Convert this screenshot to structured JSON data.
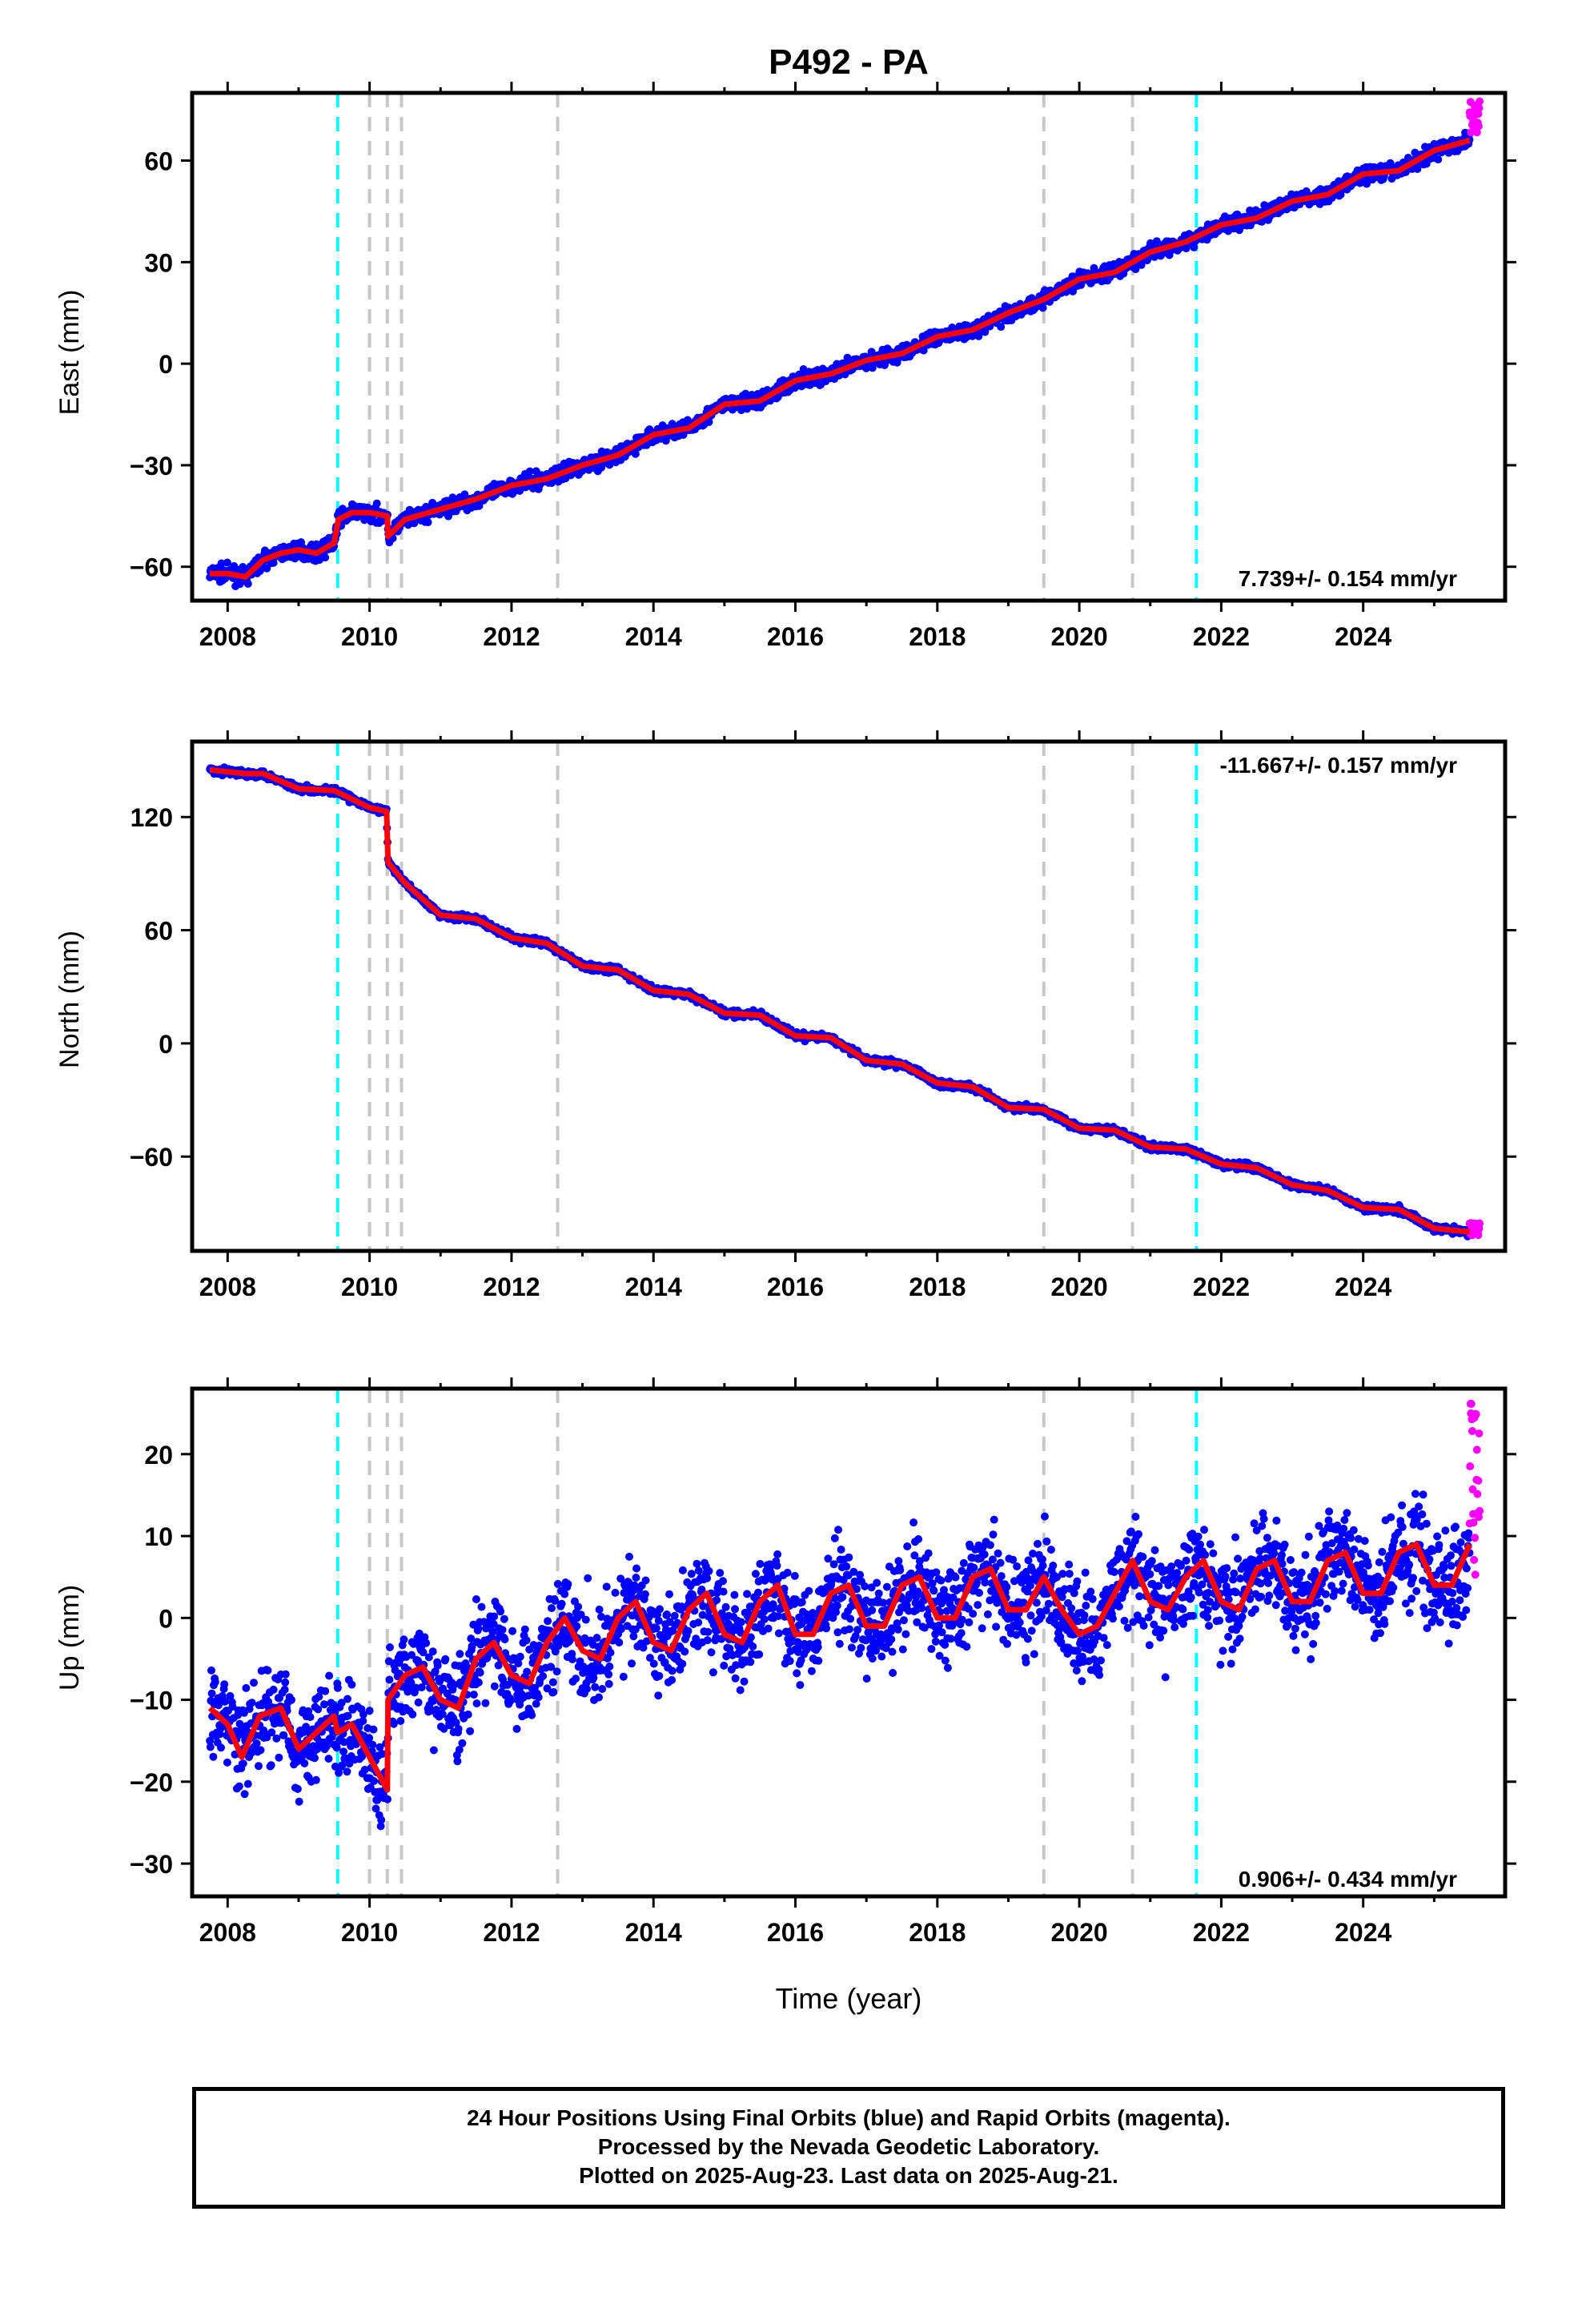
{
  "title": "P492 - PA",
  "xlabel": "Time (year)",
  "xticks": [
    "2008",
    "2010",
    "2012",
    "2014",
    "2016",
    "2018",
    "2020",
    "2022",
    "2024"
  ],
  "caption": {
    "line1": "24 Hour Positions Using Final Orbits (blue) and Rapid Orbits (magenta).",
    "line2": "Processed by the Nevada Geodetic Laboratory.",
    "line3": "Plotted on 2025-Aug-23. Last data on 2025-Aug-21."
  },
  "colors": {
    "final_orbits": "#0000ff",
    "rapid_orbits": "#ff00ff",
    "model": "#ff0000",
    "equipment_change": "#c8c8c8",
    "earthquake": "#00ffff"
  },
  "chart_data": [
    {
      "type": "scatter",
      "ylabel": "East (mm)",
      "xlim": [
        2007.5,
        2026.0
      ],
      "ylim": [
        -70,
        80
      ],
      "yticks": [
        -60,
        -30,
        0,
        30,
        60
      ],
      "velocity": "7.739+/- 0.154 mm/yr",
      "velocity_position": "bottom-right",
      "gray_lines": [
        2010.0,
        2010.25,
        2010.45,
        2012.65,
        2019.5,
        2020.75
      ],
      "cyan_lines": [
        2009.55,
        2021.65
      ],
      "model_series": {
        "name": "model",
        "x": [
          2007.75,
          2008.0,
          2008.25,
          2008.5,
          2008.75,
          2009.0,
          2009.25,
          2009.5,
          2009.56,
          2009.75,
          2010.0,
          2010.25,
          2010.26,
          2010.5,
          2011.0,
          2011.5,
          2012.0,
          2012.5,
          2013.0,
          2013.5,
          2014.0,
          2014.5,
          2015.0,
          2015.5,
          2016.0,
          2016.5,
          2017.0,
          2017.5,
          2018.0,
          2018.5,
          2019.0,
          2019.5,
          2020.0,
          2020.5,
          2021.0,
          2021.5,
          2022.0,
          2022.5,
          2023.0,
          2023.5,
          2024.0,
          2024.5,
          2025.0,
          2025.5
        ],
        "y": [
          -62,
          -62,
          -63,
          -58,
          -56,
          -55,
          -56,
          -53,
          -46,
          -44,
          -44,
          -45,
          -51,
          -46,
          -43,
          -40,
          -36,
          -34,
          -30,
          -27,
          -21,
          -19,
          -12,
          -11,
          -5,
          -3,
          1,
          3,
          8,
          10,
          15,
          19,
          25,
          27,
          33,
          36,
          41,
          43,
          48,
          50,
          56,
          57,
          63,
          66
        ]
      },
      "rapid_series": {
        "name": "rapid",
        "x_range": [
          2025.5,
          2025.64
        ],
        "y_range": [
          68,
          78
        ]
      }
    },
    {
      "type": "scatter",
      "ylabel": "North (mm)",
      "xlim": [
        2007.5,
        2026.0
      ],
      "ylim": [
        -110,
        160
      ],
      "yticks": [
        -60,
        0,
        60,
        120
      ],
      "velocity": "-11.667+/- 0.157 mm/yr",
      "velocity_position": "top-right",
      "gray_lines": [
        2010.0,
        2010.25,
        2010.45,
        2012.65,
        2019.5,
        2020.75
      ],
      "cyan_lines": [
        2009.55,
        2021.65
      ],
      "model_series": {
        "name": "model",
        "x": [
          2007.75,
          2008.25,
          2008.5,
          2009.0,
          2009.5,
          2010.0,
          2010.24,
          2010.26,
          2010.5,
          2011.0,
          2011.5,
          2012.0,
          2012.5,
          2013.0,
          2013.5,
          2014.0,
          2014.5,
          2015.0,
          2015.5,
          2016.0,
          2016.5,
          2017.0,
          2017.5,
          2018.0,
          2018.5,
          2019.0,
          2019.5,
          2020.0,
          2020.5,
          2021.0,
          2021.5,
          2022.0,
          2022.5,
          2023.0,
          2023.5,
          2024.0,
          2024.5,
          2025.0,
          2025.5
        ],
        "y": [
          145,
          143,
          143,
          135,
          134,
          125,
          123,
          96,
          85,
          68,
          66,
          56,
          53,
          41,
          39,
          28,
          26,
          16,
          15,
          4,
          3,
          -9,
          -11,
          -21,
          -23,
          -34,
          -35,
          -45,
          -46,
          -55,
          -56,
          -64,
          -66,
          -75,
          -78,
          -87,
          -88,
          -98,
          -100
        ]
      },
      "rapid_series": {
        "name": "rapid",
        "x_range": [
          2025.5,
          2025.64
        ],
        "y_range": [
          -102,
          -95
        ]
      }
    },
    {
      "type": "scatter",
      "ylabel": "Up (mm)",
      "xlim": [
        2007.5,
        2026.0
      ],
      "ylim": [
        -34,
        28
      ],
      "yticks": [
        -30,
        -20,
        -10,
        0,
        10,
        20
      ],
      "velocity": "0.906+/- 0.434 mm/yr",
      "velocity_position": "bottom-right",
      "gray_lines": [
        2010.0,
        2010.25,
        2010.45,
        2012.65,
        2019.5,
        2020.75
      ],
      "cyan_lines": [
        2009.55,
        2021.65
      ],
      "model_series": {
        "name": "model",
        "x": [
          2007.75,
          2008.0,
          2008.2,
          2008.45,
          2008.75,
          2009.0,
          2009.25,
          2009.5,
          2009.55,
          2009.75,
          2010.0,
          2010.25,
          2010.26,
          2010.5,
          2010.75,
          2011.0,
          2011.25,
          2011.5,
          2011.75,
          2012.0,
          2012.25,
          2012.5,
          2012.75,
          2013.0,
          2013.25,
          2013.5,
          2013.75,
          2014.0,
          2014.25,
          2014.5,
          2014.75,
          2015.0,
          2015.25,
          2015.5,
          2015.75,
          2016.0,
          2016.25,
          2016.5,
          2016.75,
          2017.0,
          2017.25,
          2017.5,
          2017.75,
          2018.0,
          2018.25,
          2018.5,
          2018.75,
          2019.0,
          2019.25,
          2019.5,
          2019.75,
          2020.0,
          2020.25,
          2020.5,
          2020.75,
          2021.0,
          2021.25,
          2021.5,
          2021.75,
          2022.0,
          2022.25,
          2022.5,
          2022.75,
          2023.0,
          2023.25,
          2023.5,
          2023.75,
          2024.0,
          2024.25,
          2024.5,
          2024.75,
          2025.0,
          2025.25,
          2025.5
        ],
        "y": [
          -11,
          -13,
          -17,
          -12,
          -11,
          -16,
          -14,
          -12,
          -14,
          -13,
          -17,
          -21,
          -10,
          -7,
          -6,
          -10,
          -11,
          -5,
          -3,
          -7,
          -8,
          -3,
          0,
          -4,
          -5,
          0,
          2,
          -3,
          -4,
          1,
          3,
          -2,
          -3,
          2,
          4,
          -2,
          -2,
          3,
          4,
          -1,
          -1,
          4,
          5,
          0,
          0,
          5,
          6,
          1,
          1,
          5,
          1,
          -2,
          -1,
          3,
          7,
          2,
          1,
          5,
          7,
          2,
          1,
          6,
          7,
          2,
          2,
          7,
          8,
          3,
          3,
          8,
          9,
          4,
          4,
          9
        ]
      },
      "rapid_series": {
        "name": "rapid",
        "x_range": [
          2025.5,
          2025.64
        ],
        "y_range": [
          5,
          27
        ]
      }
    }
  ]
}
